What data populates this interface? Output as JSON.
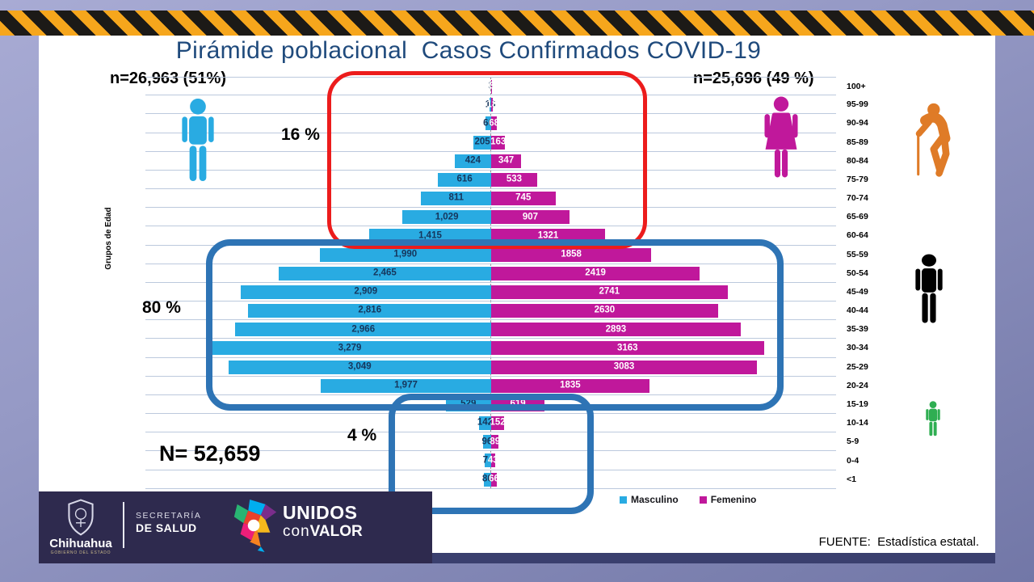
{
  "title": "Pirámide poblacional  Casos Confirmados COVID-19",
  "totals": {
    "male": "n=26,963 (51%)",
    "female": "n=25,696 (49 %)",
    "overall": "N= 52,659"
  },
  "annotations": {
    "elderly_pct": "16 %",
    "adult_pct": "80 %",
    "child_pct": "4 %"
  },
  "y_axis_label": "Grupos de Edad",
  "legend": {
    "male": "Masculino",
    "female": "Femenino"
  },
  "source": "FUENTE:  Estadística estatal.",
  "footer": {
    "state_name": "Chihuahua",
    "state_sub": "GOBIERNO DEL ESTADO",
    "secretaria_line1": "SECRETARÍA",
    "secretaria_line2": "DE SALUD",
    "unidos_line1": "UNIDOS",
    "unidos_con": "con",
    "unidos_valor": "VALOR"
  },
  "colors": {
    "male": "#29abe2",
    "female": "#c0189b",
    "highlight_red": "#ec1c1c",
    "highlight_blue": "#2e74b5",
    "elderly_icon": "#df7b27",
    "adult_icon": "#000000",
    "child_icon": "#2fae52",
    "footer_bg": "#2e2a4e",
    "hazard_yellow": "#f6a61c",
    "hazard_black": "#1c1a17",
    "title_color": "#1f4a7c",
    "gridline": "#bcc9dd"
  },
  "icons": [
    "male-figure-icon",
    "female-figure-icon",
    "elderly-cane-icon",
    "adult-figure-icon",
    "child-figure-icon",
    "chihuahua-shield-icon",
    "unidos-convalor-logo"
  ],
  "chart_data": {
    "type": "bar",
    "subtype": "population-pyramid",
    "title": "Pirámide poblacional  Casos Confirmados COVID-19",
    "categories": [
      "100+",
      "95-99",
      "90-94",
      "85-89",
      "80-84",
      "75-79",
      "70-74",
      "65-69",
      "60-64",
      "55-59",
      "50-54",
      "45-49",
      "40-44",
      "35-39",
      "30-34",
      "25-29",
      "20-24",
      "15-19",
      "10-14",
      "5-9",
      "0-4",
      "<1"
    ],
    "series": [
      {
        "name": "Masculino",
        "total": 26963,
        "values": [
          3,
          16,
          66,
          205,
          424,
          616,
          811,
          1029,
          1415,
          1990,
          2465,
          2909,
          2816,
          2966,
          3279,
          3049,
          1977,
          529,
          142,
          96,
          74,
          86
        ],
        "labels": [
          "3",
          "16",
          "66",
          "205",
          "424",
          "616",
          "811",
          "1,029",
          "1,415",
          "1,990",
          "2,465",
          "2,909",
          "2,816",
          "2,966",
          "3,279",
          "3,049",
          "1,977",
          "529",
          "142",
          "96",
          "74",
          "86"
        ]
      },
      {
        "name": "Femenino",
        "total": 25696,
        "values": [
          3,
          18,
          68,
          163,
          347,
          533,
          745,
          907,
          1321,
          1858,
          2419,
          2741,
          2630,
          2893,
          3163,
          3083,
          1835,
          619,
          152,
          89,
          43,
          66
        ],
        "labels": [
          "3",
          "18",
          "68",
          "163",
          "347",
          "533",
          "745",
          "907",
          "1321",
          "1858",
          "2419",
          "2741",
          "2630",
          "2893",
          "3163",
          "3083",
          "1835",
          "619",
          "152",
          "89",
          "43",
          "66"
        ]
      }
    ],
    "xlabel": "",
    "ylabel": "Grupos de Edad",
    "x_max_each_side": 3300,
    "grid": true,
    "legend_position": "bottom",
    "highlight_groups": [
      {
        "label": "16 %",
        "rows": "60-64 a 100+",
        "box_color": "#ec1c1c"
      },
      {
        "label": "80 %",
        "rows": "20-24 a 55-59",
        "box_color": "#2e74b5"
      },
      {
        "label": "4 %",
        "rows": "<1 a 15-19",
        "box_color": "#2e74b5"
      }
    ]
  }
}
